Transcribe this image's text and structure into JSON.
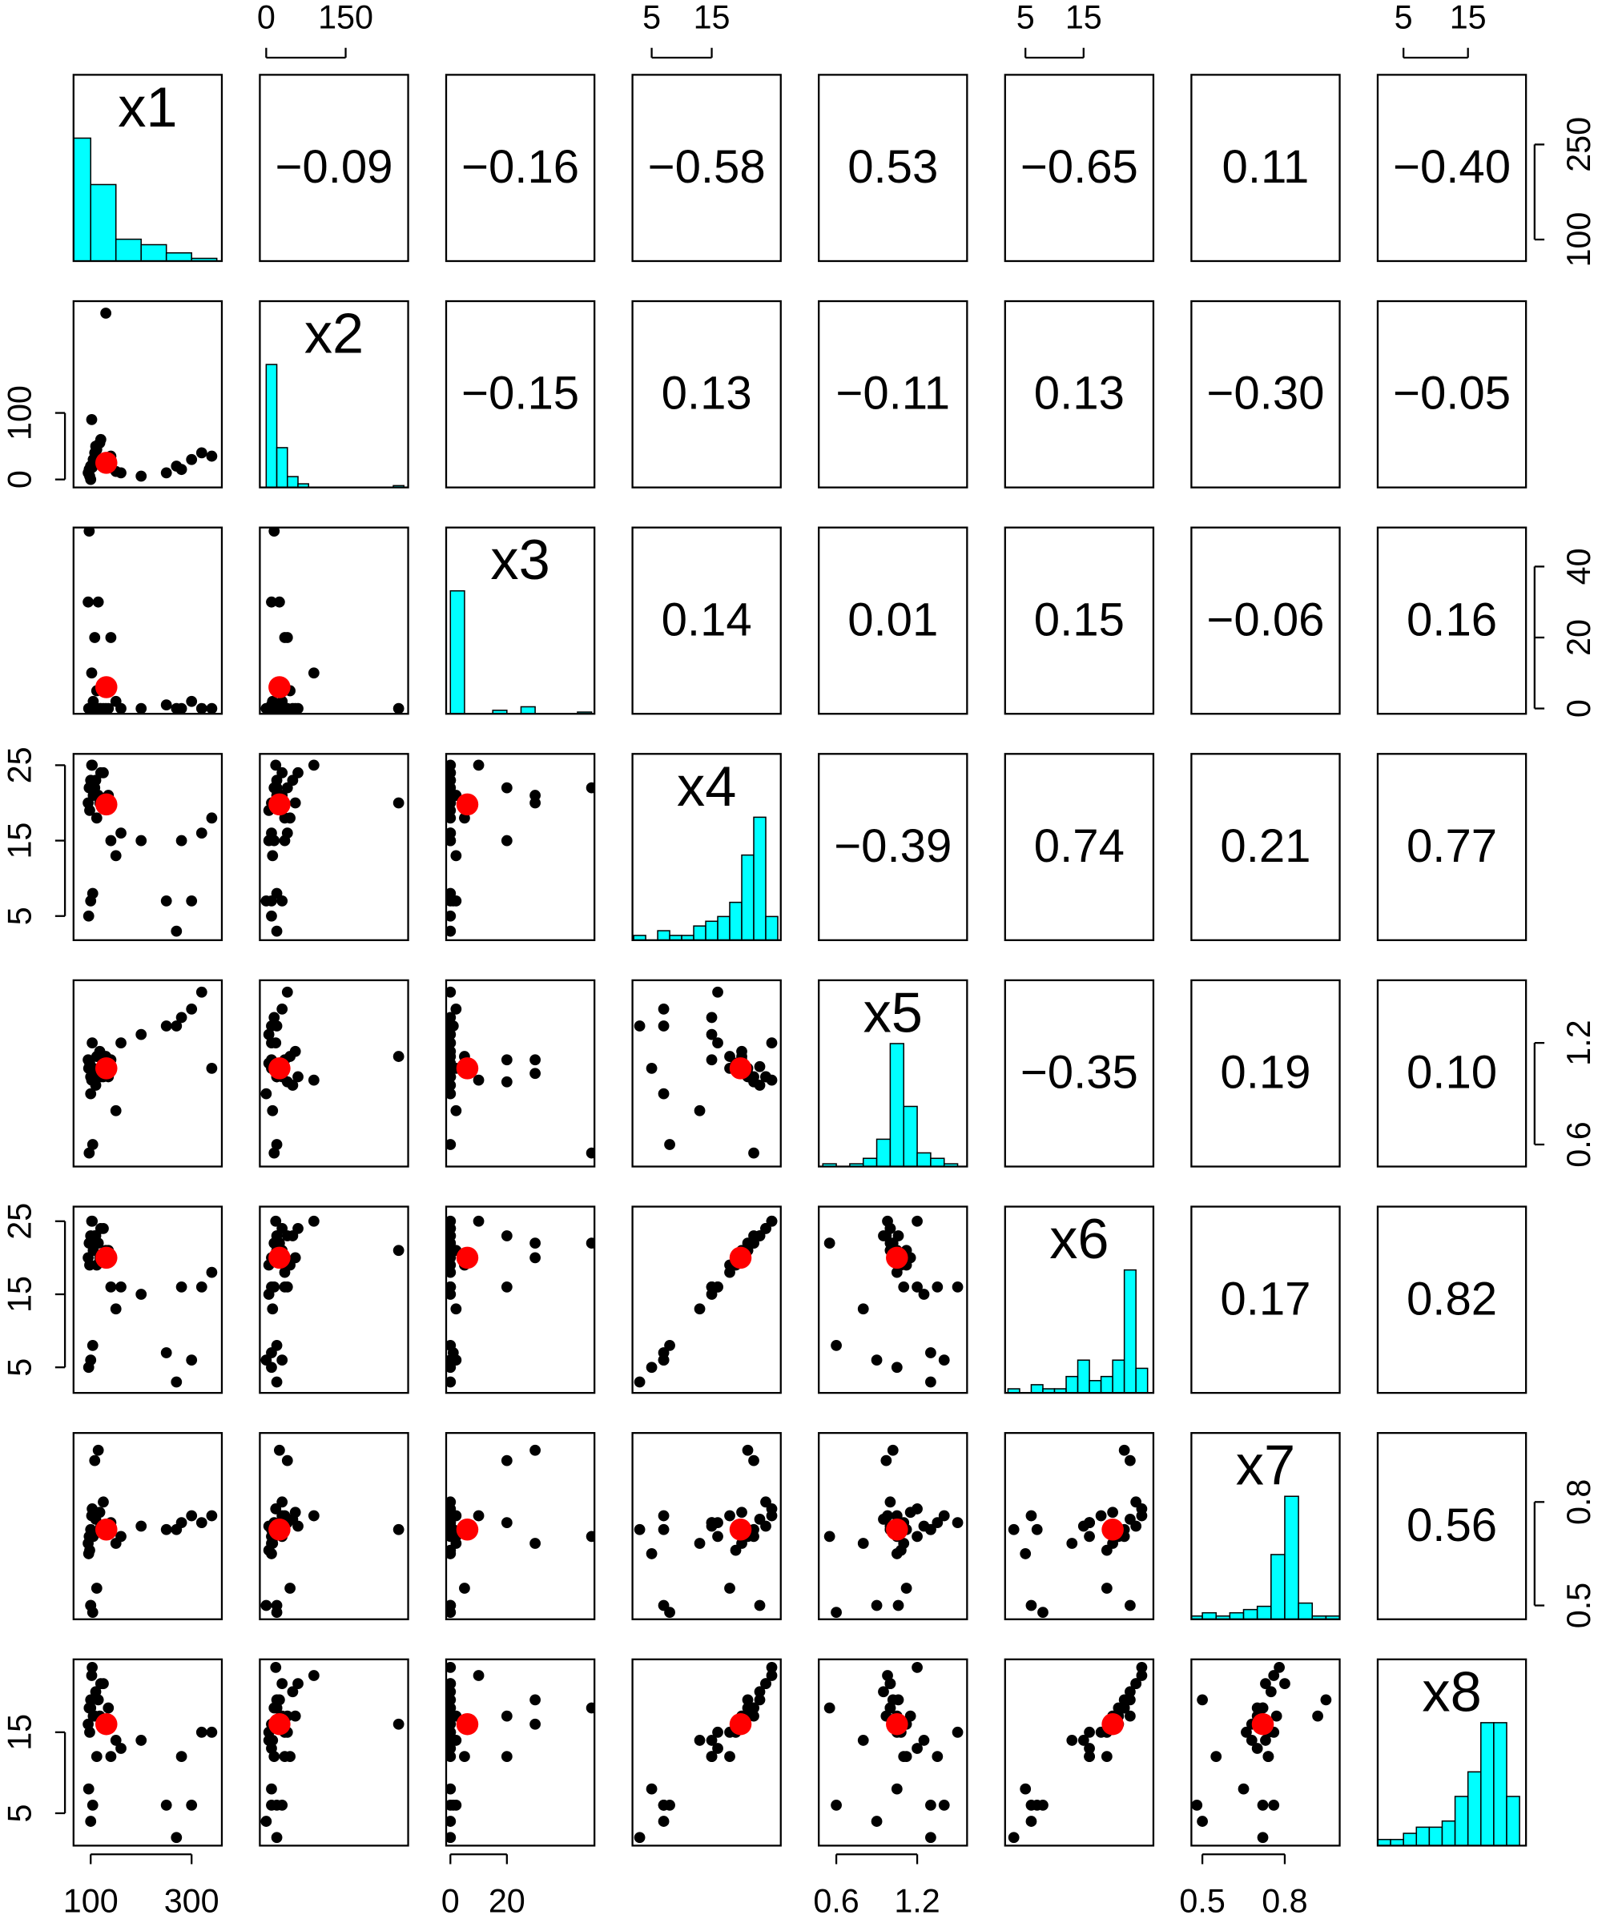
{
  "chart_data": {
    "type": "scatter-matrix",
    "variables": [
      {
        "name": "x1",
        "lim": [
          66,
          360
        ],
        "xticks": [
          100,
          300
        ],
        "yticks": [
          100,
          250
        ],
        "mean": 131,
        "values": [
          100,
          105,
          110,
          95,
          120,
          98,
          102,
          130,
          100,
          97,
          104,
          140,
          160,
          200,
          250,
          280,
          300,
          320,
          340,
          270,
          115,
          108,
          100,
          112,
          125,
          96,
          118,
          135,
          150,
          103
        ],
        "hist": {
          "bins": [
            50,
            100,
            150,
            200,
            250,
            300,
            350
          ],
          "counts": [
            45,
            28,
            8,
            6,
            3,
            1
          ]
        }
      },
      {
        "name": "x2",
        "lim": [
          -12,
          268
        ],
        "xticks": [
          0,
          150
        ],
        "yticks": [
          0,
          100
        ],
        "mean": 25,
        "values": [
          20,
          30,
          50,
          10,
          60,
          5,
          90,
          250,
          0,
          15,
          20,
          35,
          10,
          5,
          10,
          15,
          30,
          40,
          35,
          20,
          25,
          40,
          20,
          45,
          30,
          10,
          55,
          20,
          12,
          18
        ],
        "hist": {
          "bins": [
            0,
            20,
            40,
            60,
            80,
            100,
            120,
            140,
            160,
            180,
            200,
            220,
            240,
            260
          ],
          "counts": [
            68,
            22,
            6,
            2,
            0,
            0,
            0,
            0,
            0,
            0,
            0,
            0,
            1
          ]
        }
      },
      {
        "name": "x3",
        "lim": [
          -1.5,
          51
        ],
        "xticks": [
          0,
          20
        ],
        "yticks": [
          0,
          20,
          40
        ],
        "mean": 6,
        "values": [
          0,
          2,
          0,
          30,
          0,
          0,
          10,
          0,
          0,
          50,
          0,
          20,
          0,
          0,
          1,
          0,
          2,
          0,
          0,
          0,
          30,
          20,
          0,
          5,
          0,
          0,
          0,
          0,
          2,
          0
        ],
        "hist": {
          "bins": [
            0,
            5,
            10,
            15,
            20,
            25,
            30,
            35,
            40,
            45,
            50
          ],
          "counts": [
            70,
            0,
            0,
            2,
            0,
            4,
            0,
            0,
            0,
            1
          ]
        }
      },
      {
        "name": "x4",
        "lim": [
          1.8,
          26.5
        ],
        "xticks": [
          5,
          15
        ],
        "yticks": [
          5,
          15,
          25
        ],
        "mean": 19.8,
        "values": [
          22,
          21,
          23,
          20,
          24,
          19,
          25,
          20,
          7,
          22,
          8,
          15,
          16,
          15,
          7,
          15,
          7,
          16,
          18,
          3,
          21,
          22,
          23,
          18,
          24,
          5,
          20,
          21,
          13,
          25
        ],
        "hist": {
          "bins": [
            2,
            4,
            6,
            8,
            10,
            12,
            14,
            16,
            18,
            20,
            22,
            24,
            26
          ],
          "counts": [
            1,
            0,
            2,
            1,
            1,
            3,
            4,
            5,
            8,
            18,
            26,
            5
          ]
        }
      },
      {
        "name": "x5",
        "lim": [
          0.47,
          1.57
        ],
        "xticks": [
          0.6,
          1.2
        ],
        "yticks": [
          0.6,
          1.2
        ],
        "mean": 1.05,
        "values": [
          1.0,
          1.05,
          0.95,
          1.1,
          1.0,
          1.08,
          0.98,
          1.12,
          0.9,
          0.55,
          0.6,
          1.1,
          1.2,
          1.25,
          1.3,
          1.35,
          1.4,
          1.5,
          1.05,
          1.3,
          1.02,
          0.97,
          1.06,
          1.12,
          1.0,
          1.05,
          1.15,
          1.0,
          0.8,
          1.2
        ],
        "hist": {
          "bins": [
            0.5,
            0.6,
            0.7,
            0.8,
            0.9,
            1.0,
            1.1,
            1.2,
            1.3,
            1.4,
            1.5
          ],
          "counts": [
            1,
            0,
            1,
            3,
            10,
            45,
            22,
            5,
            3,
            1
          ]
        }
      },
      {
        "name": "x6",
        "lim": [
          1.5,
          27
        ],
        "xticks": [
          5,
          15
        ],
        "yticks": [
          5,
          15,
          25
        ],
        "mean": 20,
        "values": [
          22,
          21,
          23,
          20,
          24,
          19,
          25,
          21,
          6,
          22,
          8,
          16,
          16,
          15,
          7,
          16,
          6,
          16,
          18,
          3,
          22,
          23,
          23,
          19,
          24,
          5,
          20,
          21,
          13,
          25
        ],
        "hist": {
          "bins": [
            2,
            4,
            6,
            8,
            10,
            12,
            14,
            16,
            18,
            20,
            22,
            24,
            26
          ],
          "counts": [
            1,
            0,
            2,
            1,
            1,
            4,
            8,
            3,
            4,
            8,
            30,
            6
          ]
        }
      },
      {
        "name": "x7",
        "lim": [
          0.46,
          1.0
        ],
        "xticks": [
          0.5,
          0.8
        ],
        "yticks": [
          0.5,
          0.8
        ],
        "mean": 0.72,
        "values": [
          0.72,
          0.7,
          0.75,
          0.68,
          0.73,
          0.66,
          0.76,
          0.72,
          0.5,
          0.7,
          0.48,
          0.74,
          0.7,
          0.73,
          0.72,
          0.74,
          0.76,
          0.74,
          0.76,
          0.72,
          0.95,
          0.92,
          0.5,
          0.55,
          0.8,
          0.65,
          0.77,
          0.72,
          0.68,
          0.78
        ],
        "hist": {
          "bins": [
            0.45,
            0.5,
            0.55,
            0.6,
            0.65,
            0.7,
            0.75,
            0.8,
            0.85,
            0.9,
            0.95,
            1.0
          ],
          "counts": [
            1,
            2,
            1,
            2,
            3,
            4,
            20,
            38,
            5,
            1,
            1
          ]
        }
      },
      {
        "name": "x8",
        "lim": [
          1,
          24
        ],
        "xticks": [
          5,
          15
        ],
        "yticks": [
          5,
          15
        ],
        "mean": 16,
        "values": [
          18,
          17,
          20,
          16,
          21,
          15,
          22,
          16,
          4,
          18,
          6,
          12,
          13,
          14,
          6,
          12,
          6,
          15,
          15,
          2,
          19,
          17,
          19,
          12,
          21,
          8,
          17,
          18,
          14,
          23
        ],
        "hist": {
          "bins": [
            1,
            3,
            5,
            7,
            9,
            11,
            13,
            15,
            17,
            19,
            21,
            23
          ],
          "counts": [
            1,
            1,
            2,
            3,
            3,
            4,
            8,
            12,
            20,
            20,
            8
          ]
        }
      }
    ],
    "correlations": [
      [
        {
          "value": -0.09,
          "label": "−0.09"
        },
        {
          "value": -0.16,
          "label": "−0.16"
        },
        {
          "value": -0.58,
          "label": "−0.58"
        },
        0.53,
        {
          "value": -0.65,
          "label": "−0.65"
        },
        0.11,
        {
          "value": -0.4,
          "label": "−0.40"
        }
      ],
      [
        {
          "value": -0.15,
          "label": "−0.15"
        },
        0.13,
        {
          "value": -0.11,
          "label": "−0.11"
        },
        0.13,
        {
          "value": -0.3,
          "label": "−0.30"
        },
        {
          "value": -0.05,
          "label": "−0.05"
        }
      ],
      [
        0.14,
        0.01,
        0.15,
        {
          "value": -0.06,
          "label": "−0.06"
        },
        0.16
      ],
      [
        {
          "value": -0.39,
          "label": "−0.39"
        },
        0.74,
        0.21,
        0.77
      ],
      [
        {
          "value": -0.35,
          "label": "−0.35"
        },
        0.19,
        {
          "value": 0.1,
          "label": "0.10"
        }
      ],
      [
        0.17,
        0.82
      ],
      [
        0.56
      ]
    ],
    "point_color": "#000000",
    "mean_color": "#ff0000",
    "hist_color": "#00ffff"
  }
}
